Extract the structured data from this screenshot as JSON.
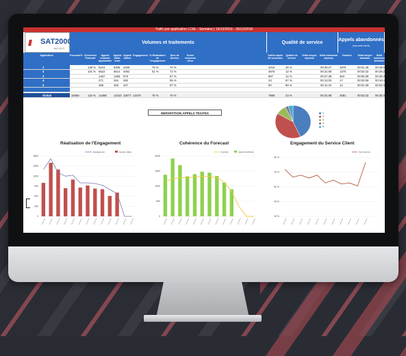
{
  "topbar_text": "Trafic par application | CAL - Semaine | 19/12/2016 - 25/12/2016",
  "logo": {
    "mark": "///",
    "name": "SAT2000",
    "sub": "by LDLC"
  },
  "sections": {
    "volumes": "Volumes et traitements",
    "qualite": "Qualité de service",
    "abandon": "Appels abandonnés",
    "abandon_sub": "(seconde client)"
  },
  "columns": [
    "Application",
    "Forecast",
    "%",
    "Cohérence Forecast",
    "Appels entrants Application",
    "Appels distri-bués",
    "Appels traités",
    "Engagement",
    "% Réalisation de l'engagement",
    "Taux de Service",
    "Durée moyenne conv.",
    "Traités après 60 secondes",
    "Qualité de service",
    "Délai moyen réponse",
    "Délai maximum réponse",
    "Nombre",
    "Délai moyen abandon",
    "Délai maximum abandon"
  ],
  "rows": [
    {
      "app": "1",
      "cells": [
        "",
        "",
        "138 %",
        "6215",
        "6205",
        "4340",
        "",
        "78 %",
        "70 %",
        "",
        "3215",
        "26 %",
        "",
        "00:26:27",
        "1875",
        "00:01:48",
        "00:19:09"
      ]
    },
    {
      "app": "2",
      "cells": [
        "",
        "",
        "101 %",
        "5622",
        "5614",
        "4052",
        "",
        "51 %",
        "72 %",
        "",
        "3575",
        "12 %",
        "",
        "00:31:58",
        "1370",
        "00:02:22",
        "00:25:22"
      ]
    },
    {
      "app": "3",
      "cells": [
        "",
        "",
        "",
        "1457",
        "1455",
        "973",
        "",
        "",
        "67 %",
        "",
        "857",
        "12 %",
        "",
        "00:27:38",
        "484",
        "00:05:36",
        "00:25:38"
      ]
    },
    {
      "app": "4",
      "cells": [
        "",
        "",
        "",
        "271",
        "264",
        "250",
        "",
        "",
        "95 %",
        "",
        "23",
        "87 %",
        "",
        "00:13:03",
        "17",
        "00:02:56",
        "00:10:45"
      ]
    },
    {
      "app": "5",
      "cells": [
        "",
        "",
        "",
        "459",
        "459",
        "447",
        "",
        "",
        "97 %",
        "",
        "90",
        "80 %",
        "",
        "00:11:15",
        "12",
        "00:01:39",
        "00:04:33"
      ]
    },
    {
      "app": "",
      "cells": [
        "",
        "",
        "",
        "",
        "",
        "",
        "",
        "",
        "",
        "",
        "",
        "",
        "",
        "",
        "",
        "",
        ""
      ]
    },
    {
      "app": "Global",
      "cells": [
        "10056",
        "",
        "142 %",
        "14366",
        "14310",
        "10077",
        "13476",
        "76 %",
        "70 %",
        "",
        "7869",
        "23 %",
        "",
        "00:31:58",
        "4051",
        "00:02:32",
        "00:25:38"
      ]
    }
  ],
  "pie_title": "REPARTITION APPELS TRAITES",
  "pie_legend": [
    "1",
    "2",
    "3",
    "4",
    "5"
  ],
  "colors": {
    "brand_red": "#c8322f",
    "header_blue": "#2f6fc5",
    "pie": [
      "#4a7ebf",
      "#c0504d",
      "#9bbb59",
      "#8064a2",
      "#4bacc6"
    ],
    "bar_red": "#c0504d",
    "line_purple": "#7b74b8",
    "bar_green": "#8fd14f",
    "line_yellow": "#f4c542",
    "line_brown": "#b05a3c"
  },
  "charts": {
    "engagement": {
      "title": "Réalisation de l'Engagement",
      "legend": [
        "Engagement",
        "Appels traités"
      ],
      "yticks": [
        "1800",
        "1500",
        "1200",
        "900",
        "600",
        "300",
        "0"
      ]
    },
    "forecast": {
      "title": "Cohérence du Forecast",
      "legend": [
        "Forecast",
        "Appels distribués"
      ],
      "yticks": [
        "2000",
        "1500",
        "1000",
        "500",
        "0"
      ]
    },
    "service": {
      "title": "Engagement du Service Client",
      "legend": [
        "Taux service"
      ],
      "yticks": [
        "90 %",
        "75 %",
        "60 %",
        "45 %",
        "30 %"
      ]
    }
  },
  "chart_data": [
    {
      "type": "bar",
      "title": "Réalisation de l'Engagement",
      "ylim": [
        0,
        1800
      ],
      "series": [
        {
          "name": "Appels traités",
          "values": [
            1000,
            1600,
            1400,
            840,
            1100,
            860,
            920,
            830,
            810,
            610,
            710,
            0,
            0
          ]
        },
        {
          "name": "Engagement",
          "values": [
            1400,
            1720,
            1300,
            1200,
            1230,
            1000,
            1000,
            980,
            930,
            800,
            680,
            0,
            0
          ]
        }
      ]
    },
    {
      "type": "bar",
      "title": "Cohérence du Forecast",
      "ylim": [
        0,
        2000
      ],
      "series": [
        {
          "name": "Appels distribués",
          "values": [
            1380,
            1920,
            1700,
            1330,
            1400,
            1480,
            1450,
            1340,
            1120,
            900,
            0,
            0,
            0
          ]
        },
        {
          "name": "Forecast",
          "values": [
            1150,
            1250,
            1280,
            1290,
            1300,
            1330,
            1320,
            1280,
            1140,
            820,
            330,
            0,
            0
          ]
        }
      ]
    },
    {
      "type": "line",
      "title": "Engagement du Service Client",
      "ylim": [
        30,
        90
      ],
      "series": [
        {
          "name": "Taux service",
          "values": [
            78,
            70,
            72,
            69,
            72,
            64,
            67,
            63,
            64,
            61,
            85
          ]
        }
      ]
    }
  ]
}
